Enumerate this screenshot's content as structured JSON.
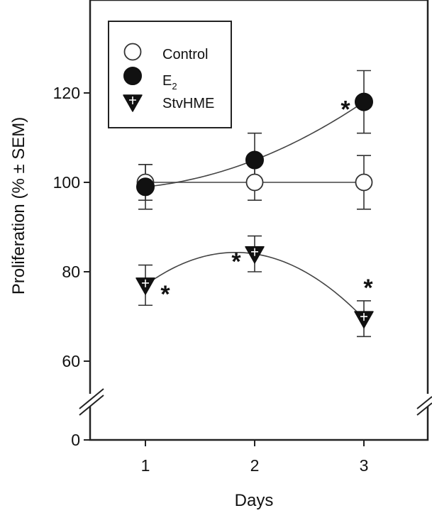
{
  "chart_data": {
    "type": "scatter",
    "xlabel": "Days",
    "ylabel": "Proliferation (% ± SEM)",
    "x_ticks": [
      "1",
      "2",
      "3"
    ],
    "y_ticks": [
      "0",
      "60",
      "80",
      "100",
      "120"
    ],
    "y_axis_break": [
      0,
      60
    ],
    "grid": false,
    "legend_position": "top-left",
    "series": [
      {
        "name": "Control",
        "marker": "open-circle",
        "x": [
          1,
          2,
          3
        ],
        "y": [
          100,
          100,
          100
        ],
        "sem": [
          4,
          4,
          6
        ],
        "curve": "line",
        "significant": [
          false,
          false,
          false
        ]
      },
      {
        "name": "E",
        "name_subscript": "2",
        "marker": "filled-circle",
        "x": [
          1,
          2,
          3
        ],
        "y": [
          99,
          105,
          118
        ],
        "sem": [
          5,
          6,
          7
        ],
        "curve": "quadratic",
        "significant": [
          false,
          false,
          true
        ]
      },
      {
        "name": "StvHME",
        "marker": "triangle-down-plus",
        "x": [
          1,
          2,
          3
        ],
        "y": [
          77,
          84,
          69.5
        ],
        "sem": [
          4.5,
          4,
          4
        ],
        "curve": "quadratic",
        "significant": [
          true,
          true,
          true
        ]
      }
    ],
    "significance_mark": "*"
  }
}
